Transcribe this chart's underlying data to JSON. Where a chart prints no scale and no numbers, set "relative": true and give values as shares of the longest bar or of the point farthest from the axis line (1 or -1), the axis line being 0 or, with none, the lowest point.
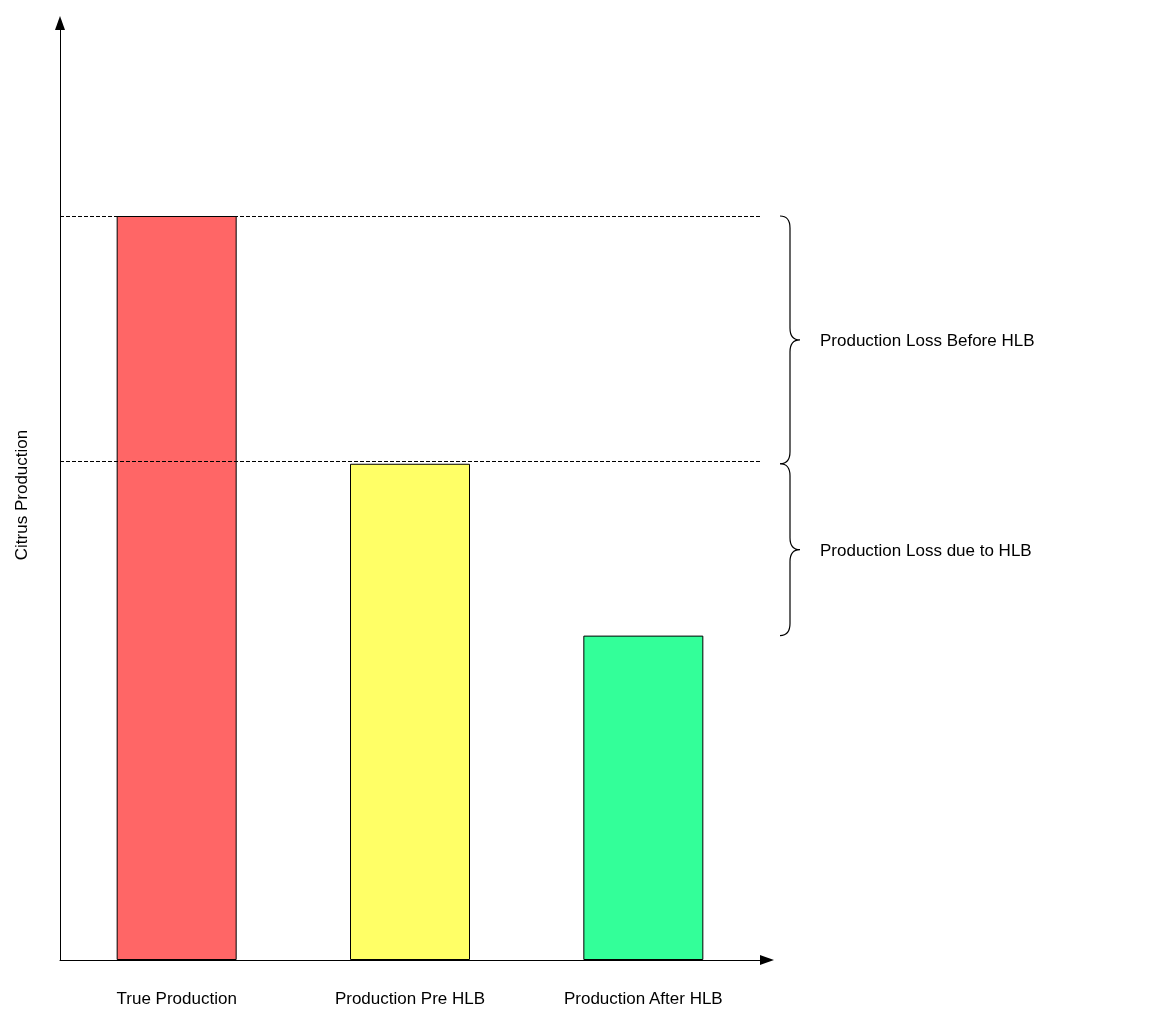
{
  "chart_data": {
    "type": "bar",
    "relative": true,
    "ylabel": "Citrus Production",
    "categories": [
      "True Production",
      "Production Pre HLB",
      "Production After HLB"
    ],
    "values": [
      1,
      0.667,
      0.436
    ],
    "colors": [
      "#ff6666",
      "#ffff66",
      "#33ff99"
    ],
    "ref_lines": [
      {
        "axis": "y",
        "value": 1,
        "line_style": "dashed",
        "color": "#000000"
      },
      {
        "axis": "y",
        "value": 0.667,
        "line_style": "dashed",
        "color": "#000000"
      }
    ],
    "annotations": [
      "Production Loss Before HLB",
      "Production Loss due to HLB"
    ]
  }
}
